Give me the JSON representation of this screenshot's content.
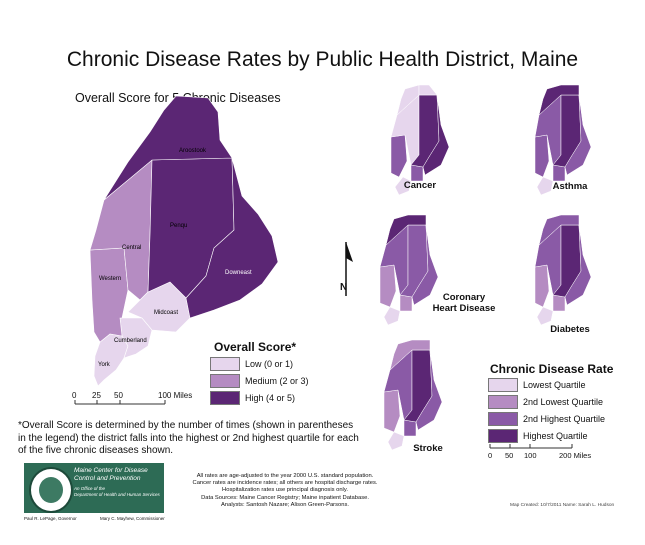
{
  "title": "Chronic Disease Rates by Public Health District, Maine",
  "subtitle": "Overall Score for 5 Chronic Diseases",
  "colors": {
    "q1": "#e6d6ed",
    "q2": "#b58cc2",
    "q3": "#8a5aa6",
    "q4": "#5b2674",
    "logo_green": "#2d6b55"
  },
  "district_labels": [
    "Aroostook",
    "Penqu",
    "Central",
    "Western",
    "Downeast",
    "Midcoast",
    "Cumberland",
    "York"
  ],
  "overall_legend": {
    "title": "Overall Score*",
    "items": [
      {
        "label": "Low (0 or 1)",
        "color": "#e6d6ed"
      },
      {
        "label": "Medium (2 or 3)",
        "color": "#b58cc2"
      },
      {
        "label": "High (4 or 5)",
        "color": "#5b2674"
      }
    ]
  },
  "main_scale": {
    "ticks": [
      "0",
      "25",
      "50",
      "100 Miles"
    ]
  },
  "mini_maps": [
    "Cancer",
    "Asthma",
    "Coronary Heart Disease",
    "Diabetes",
    "Stroke"
  ],
  "rate_legend": {
    "title": "Chronic Disease Rate",
    "items": [
      {
        "label": "Lowest Quartile",
        "color": "#e6d6ed"
      },
      {
        "label": "2nd Lowest Quartile",
        "color": "#b58cc2"
      },
      {
        "label": "2nd Highest Quartile",
        "color": "#8a5aa6"
      },
      {
        "label": "Highest Quartile",
        "color": "#5b2674"
      }
    ]
  },
  "mini_scale": {
    "ticks": [
      "0",
      "50",
      "100",
      "200 Miles"
    ]
  },
  "north_label": "N",
  "footnote": "*Overall Score is determined by the number of times (shown in parentheses in the legend) the district falls into the highest or 2nd highest quartile for each of the five chronic diseases shown.",
  "notes": [
    "All rates are age-adjusted to the year 2000 U.S. standard population.",
    "Cancer rates are incidence rates; all others are hospital discharge rates.",
    "Hospitalization rates use principal diagnosis only.",
    "Data Sources: Maine Cancer Registry; Maine inpatient Database.",
    "Analysts: Santosh Nazare; Alison Green-Parsons."
  ],
  "logo": {
    "line1": "Maine Center for Disease",
    "line2": "Control and Prevention",
    "line3": "An Office of the",
    "line4": "Department of Health and Human Services",
    "left_caption": "Paul R. LePage, Governor",
    "right_caption": "Mary C. Mayhew, Commissioner"
  },
  "credit": "Map Created: 10/7/2011  Name: Sarah L. Hudson"
}
